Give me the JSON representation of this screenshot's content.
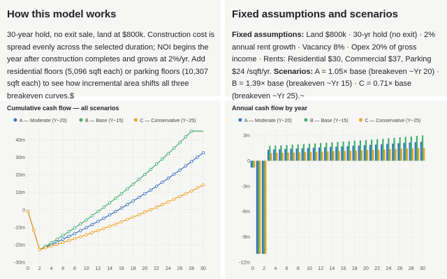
{
  "left_card": {
    "title": "How this model works",
    "text": "30-year hold, no exit sale, land at $800k. Construction cost is spread evenly across the selected duration; NOI begins the year after construction completes and grows at 2%/yr. Add residential floors (5,096 sqft each) or parking floors (10,307 sqft each) to see how incremental area shifts all three breakeven curves.$"
  },
  "right_card": {
    "title": "Fixed assumptions and scenarios",
    "fixed_label": "Fixed assumptions:",
    "fixed_text": " Land $800k · 30-yr hold (no exit) · 2% annual rent growth · Vacancy 8% · Opex 20% of gross income · Rents: Residential $30, Commercial $37, Parking $24 /sqft/yr. ",
    "scen_label": "Scenarios:",
    "scen_text": " A = 1.05× base (breakeven ~Yr 20) · B = 1.39× base (breakeven ~Yr 15) · C = 0.71× base (breakeven ~Yr 25).~"
  },
  "colors": {
    "A": "#3b6fc4",
    "B": "#3fae6e",
    "C": "#f0a020"
  },
  "chart_data": [
    {
      "type": "line",
      "title": "Cumulative cash flow — all scenarios",
      "x": [
        0,
        1,
        2,
        3,
        4,
        5,
        6,
        7,
        8,
        9,
        10,
        11,
        12,
        13,
        14,
        15,
        16,
        17,
        18,
        19,
        20,
        21,
        22,
        23,
        24,
        25,
        26,
        27,
        28,
        29,
        30
      ],
      "x_ticks": [
        0,
        2,
        4,
        6,
        8,
        10,
        12,
        14,
        16,
        18,
        20,
        22,
        24,
        26,
        28,
        30
      ],
      "y_ticks": [
        -30,
        -20,
        -10,
        0,
        10,
        20,
        30,
        40
      ],
      "y_tick_labels": [
        "-30m",
        "-20m",
        "-10m",
        "0",
        "10m",
        "20m",
        "30m",
        "40m"
      ],
      "ylim": [
        -30,
        45
      ],
      "legend_position": "top",
      "series": [
        {
          "name": "A — Moderate (Y~20)",
          "key": "A",
          "values": [
            -0.8,
            -11.8,
            -22.8,
            -21.4,
            -19.9,
            -18.4,
            -16.8,
            -15.2,
            -13.6,
            -11.9,
            -10.2,
            -8.4,
            -6.6,
            -4.8,
            -2.9,
            -1.0,
            1.0,
            3.0,
            5.0,
            7.1,
            9.2,
            11.3,
            13.5,
            15.8,
            18.0,
            20.4,
            22.7,
            25.1,
            27.6,
            30.1,
            32.6
          ]
        },
        {
          "name": "B — Base (Y~15)",
          "key": "B",
          "values": [
            -0.8,
            -11.8,
            -22.8,
            -20.9,
            -18.9,
            -16.8,
            -14.7,
            -12.5,
            -10.3,
            -8.1,
            -5.8,
            -3.4,
            -1.0,
            1.5,
            4.0,
            6.6,
            9.2,
            11.9,
            14.6,
            17.4,
            20.2,
            23.1,
            26.1,
            29.1,
            32.1,
            35.3,
            38.4,
            41.7,
            45.0,
            48.3,
            51.7
          ]
        },
        {
          "name": "C — Conservative (Y~25)",
          "key": "C",
          "values": [
            -0.8,
            -11.8,
            -22.8,
            -21.8,
            -20.8,
            -19.8,
            -18.7,
            -17.6,
            -16.5,
            -15.4,
            -14.3,
            -13.1,
            -11.9,
            -10.7,
            -9.4,
            -8.2,
            -6.9,
            -5.5,
            -4.2,
            -2.8,
            -1.4,
            0.0,
            1.5,
            3.0,
            4.5,
            6.1,
            7.6,
            9.2,
            10.8,
            12.5,
            14.2
          ]
        }
      ]
    },
    {
      "type": "bar",
      "title": "Annual cash flow by year",
      "x": [
        0,
        1,
        2,
        3,
        4,
        5,
        6,
        7,
        8,
        9,
        10,
        11,
        12,
        13,
        14,
        15,
        16,
        17,
        18,
        19,
        20,
        21,
        22,
        23,
        24,
        25,
        26,
        27,
        28,
        29,
        30
      ],
      "x_ticks": [
        0,
        2,
        4,
        6,
        8,
        10,
        12,
        14,
        16,
        18,
        20,
        22,
        24,
        26,
        28,
        30
      ],
      "y_ticks": [
        -12,
        -9,
        -6,
        -3,
        0,
        3
      ],
      "y_tick_labels": [
        "-12m",
        "-9m",
        "-6m",
        "-3m",
        "0",
        "3m"
      ],
      "ylim": [
        -12,
        3.5
      ],
      "legend_position": "top",
      "series": [
        {
          "name": "A — Moderate (Y~20)",
          "key": "A",
          "values": [
            -0.8,
            -11,
            -11,
            1.3,
            1.33,
            1.36,
            1.39,
            1.42,
            1.45,
            1.48,
            1.51,
            1.54,
            1.57,
            1.6,
            1.63,
            1.66,
            1.7,
            1.73,
            1.77,
            1.8,
            1.84,
            1.88,
            1.91,
            1.95,
            1.99,
            2.03,
            2.07,
            2.11,
            2.15,
            2.2,
            2.24
          ]
        },
        {
          "name": "B — Base (Y~15)",
          "key": "B",
          "values": [
            -0.8,
            -11,
            -11,
            1.75,
            1.79,
            1.82,
            1.86,
            1.9,
            1.93,
            1.97,
            2.01,
            2.05,
            2.09,
            2.13,
            2.18,
            2.22,
            2.26,
            2.31,
            2.36,
            2.4,
            2.45,
            2.5,
            2.55,
            2.6,
            2.65,
            2.71,
            2.76,
            2.82,
            2.87,
            2.93,
            2.99
          ]
        },
        {
          "name": "C — Conservative (Y~25)",
          "key": "C",
          "values": [
            -0.8,
            -11,
            -11,
            0.9,
            0.92,
            0.94,
            0.96,
            0.97,
            0.99,
            1.01,
            1.03,
            1.05,
            1.07,
            1.1,
            1.12,
            1.14,
            1.16,
            1.19,
            1.21,
            1.23,
            1.26,
            1.28,
            1.31,
            1.33,
            1.36,
            1.39,
            1.42,
            1.45,
            1.47,
            1.5,
            1.53
          ]
        }
      ]
    }
  ]
}
